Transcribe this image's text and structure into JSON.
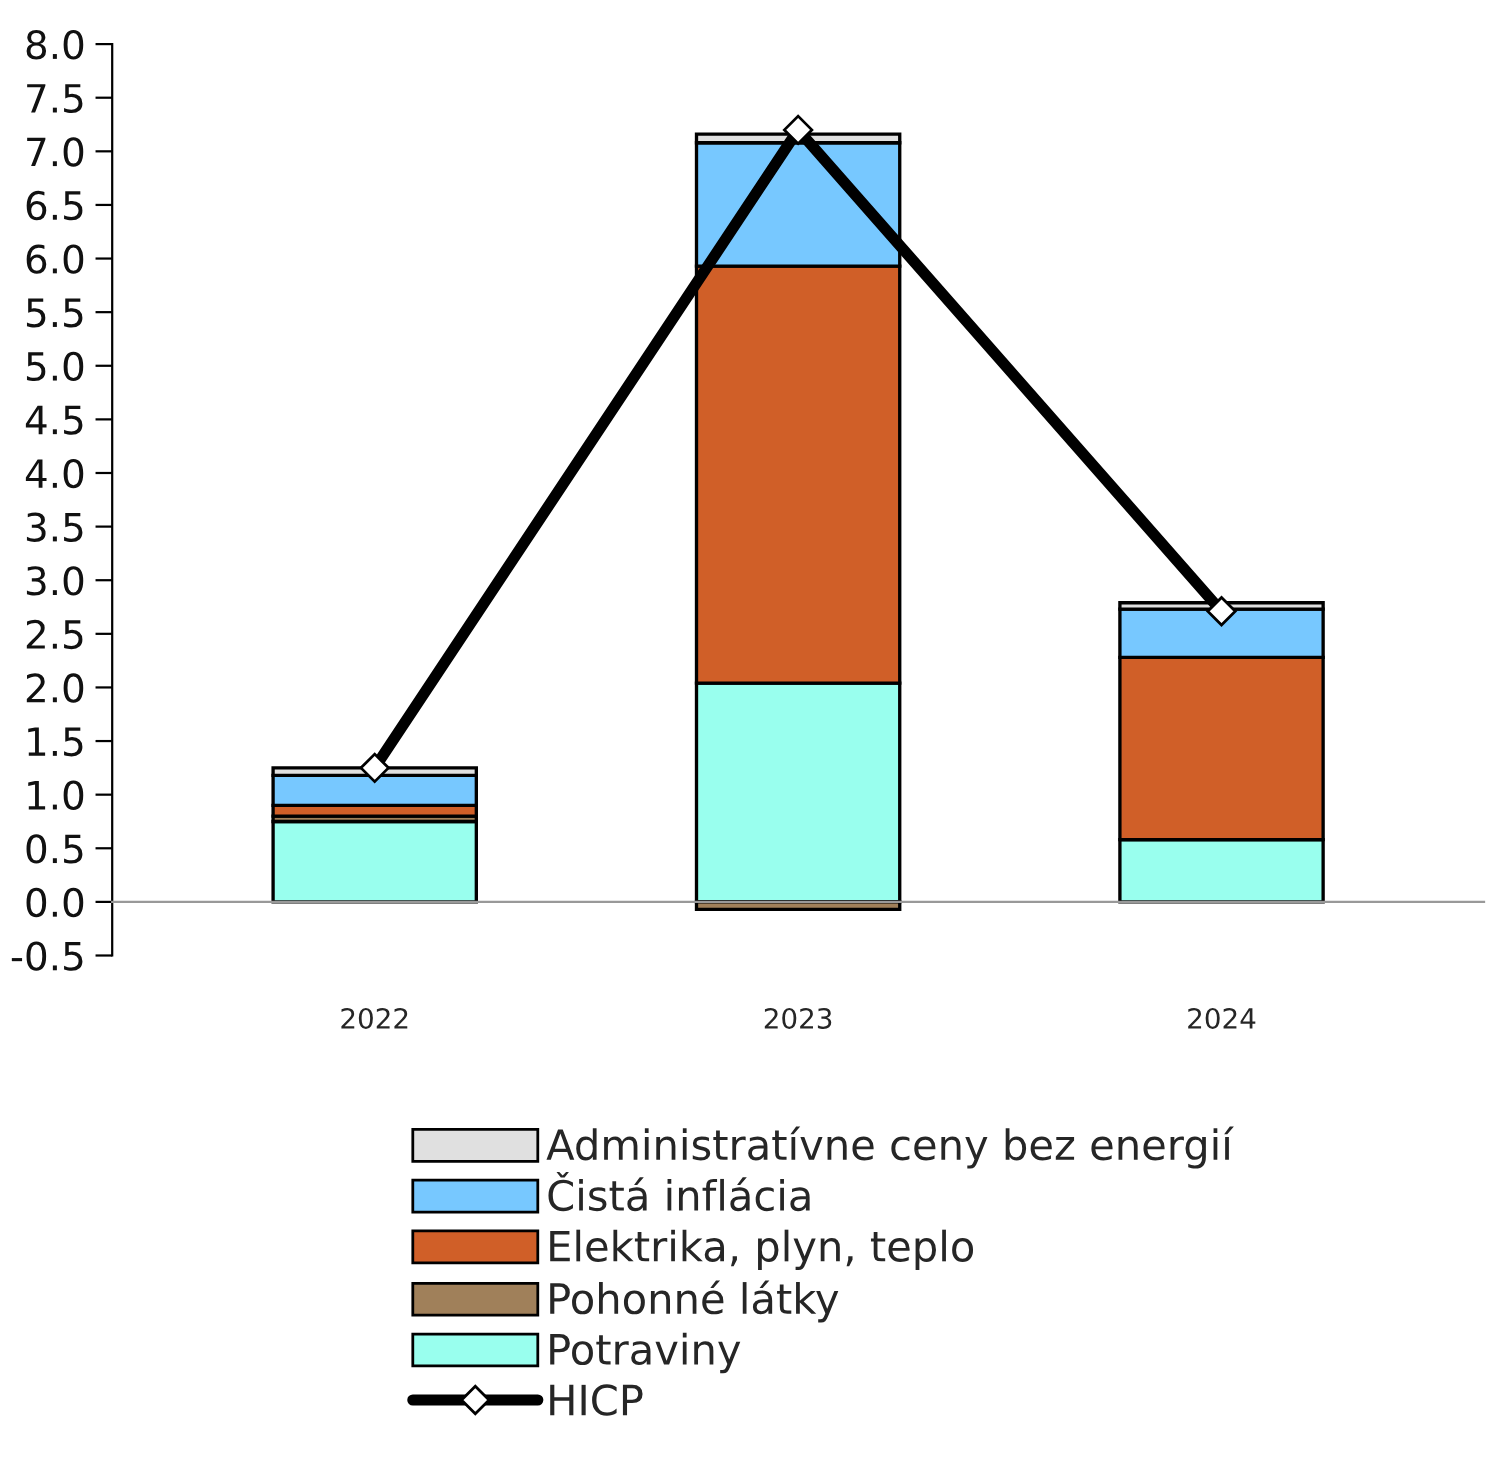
{
  "chart_data": {
    "type": "bar",
    "stacked": true,
    "categories": [
      "2022",
      "2023",
      "2024"
    ],
    "series": [
      {
        "name": "Potraviny",
        "color": "#99ffee",
        "values": [
          0.75,
          2.04,
          0.58
        ]
      },
      {
        "name": "Pohonné látky",
        "color": "#a0805a",
        "values": [
          0.05,
          -0.07,
          0.0
        ]
      },
      {
        "name": "Elektrika, plyn, teplo",
        "color": "#d05f28",
        "values": [
          0.1,
          3.89,
          1.7
        ]
      },
      {
        "name": "Čistá inflácia",
        "color": "#77c8ff",
        "values": [
          0.28,
          1.15,
          0.45
        ]
      },
      {
        "name": "Administratívne ceny bez energií",
        "color": "#e0e0e0",
        "values": [
          0.07,
          0.08,
          0.06
        ]
      },
      {
        "name": "HICP",
        "type": "line",
        "color": "#000000",
        "marker": "diamond",
        "values": [
          1.25,
          7.2,
          2.71
        ]
      }
    ],
    "ylim": [
      -0.5,
      8.0
    ],
    "yticks": [
      -0.5,
      {
        "value": 0,
        "label": "0.0"
      },
      0.5,
      {
        "value": 1,
        "label": "1.0"
      },
      1.5,
      {
        "value": 2,
        "label": "2.0"
      },
      2.5,
      {
        "value": 3,
        "label": "3.0"
      },
      3.5,
      {
        "value": 4,
        "label": "4.0"
      },
      4.5,
      {
        "value": 5,
        "label": "5.0"
      },
      5.5,
      {
        "value": 6,
        "label": "6.0"
      },
      6.5,
      {
        "value": 7,
        "label": "7.0"
      },
      7.5,
      {
        "value": 8,
        "label": "8.0"
      }
    ],
    "legend": "bottom"
  }
}
